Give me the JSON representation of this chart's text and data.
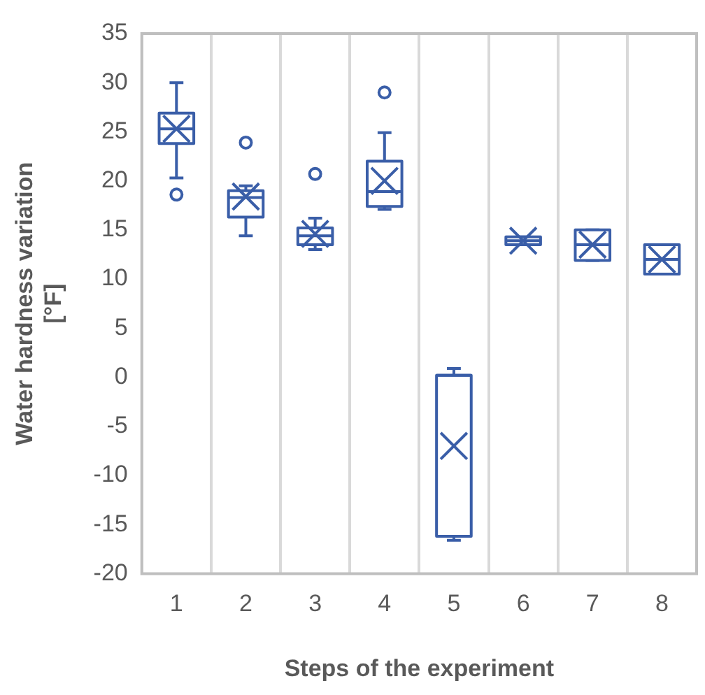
{
  "chart_data": {
    "type": "box",
    "xlabel": "Steps of the experiment",
    "ylabel": "Water hardness variation [°F]",
    "categories": [
      "1",
      "2",
      "3",
      "4",
      "5",
      "6",
      "7",
      "8"
    ],
    "series": [
      {
        "color": "#3a5ea8",
        "boxes": [
          {
            "low": 20.3,
            "q1": 23.8,
            "median": 25.3,
            "q3": 26.9,
            "high": 30.0,
            "mean": 25.3,
            "outliers": [
              18.6
            ]
          },
          {
            "low": 14.4,
            "q1": 16.3,
            "median": 18.3,
            "q3": 19.0,
            "high": 19.5,
            "mean": 18.4,
            "outliers": [
              23.9
            ]
          },
          {
            "low": 13.0,
            "q1": 13.5,
            "median": 14.4,
            "q3": 15.2,
            "high": 16.2,
            "mean": 14.6,
            "outliers": [
              20.7
            ]
          },
          {
            "low": 17.1,
            "q1": 17.4,
            "median": 18.9,
            "q3": 22.0,
            "high": 24.9,
            "mean": 20.0,
            "outliers": [
              29.0
            ]
          },
          {
            "low": -16.6,
            "q1": -16.2,
            "median": 0.2,
            "q3": 0.2,
            "high": 0.9,
            "mean": -7.0
          },
          {
            "low": 13.5,
            "q1": 13.5,
            "median": 13.9,
            "q3": 14.3,
            "high": 14.3,
            "mean": 13.9
          },
          {
            "low": 11.9,
            "q1": 11.9,
            "median": 13.5,
            "q3": 15.0,
            "high": 15.0,
            "mean": 13.5
          },
          {
            "low": 10.5,
            "q1": 10.5,
            "median": 12.0,
            "q3": 13.5,
            "high": 13.5,
            "mean": 12.0
          }
        ]
      }
    ],
    "ylim": [
      -20,
      35
    ],
    "yticks": [
      -20,
      -15,
      -10,
      -5,
      0,
      5,
      10,
      15,
      20,
      25,
      30,
      35
    ],
    "grid": "x"
  }
}
